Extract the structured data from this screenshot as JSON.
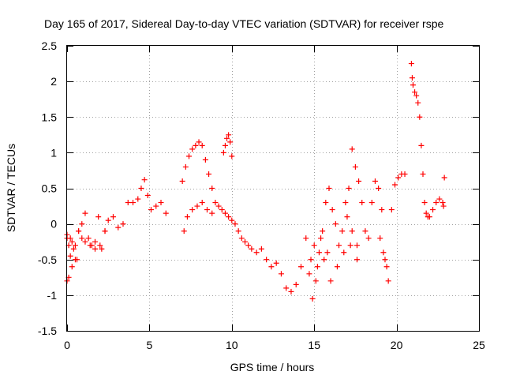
{
  "chart_data": {
    "type": "scatter",
    "title": "Day 165 of 2017, Sidereal Day-to-day VTEC variation (SDTVAR) for receiver rspe",
    "xlabel": "GPS time / hours",
    "ylabel": "SDTVAR / TECUs",
    "xlim": [
      0,
      25
    ],
    "ylim": [
      -1.5,
      2.5
    ],
    "xticks": [
      0,
      5,
      10,
      15,
      20,
      25
    ],
    "xtick_labels": [
      "0",
      "5",
      "10",
      "15",
      "20",
      "25"
    ],
    "yticks": [
      -1.5,
      -1,
      -0.5,
      0,
      0.5,
      1,
      1.5,
      2,
      2.5
    ],
    "ytick_labels": [
      "-1.5",
      "-1",
      "-0.5",
      "0",
      "0.5",
      "1",
      "1.5",
      "2",
      "2.5"
    ],
    "grid": true,
    "marker": "+",
    "marker_color": "#ff0000",
    "series": [
      {
        "name": "rspe",
        "x": [
          0.0,
          0.1,
          0.2,
          0.3,
          0.5,
          0.7,
          0.9,
          1.1,
          1.3,
          1.5,
          1.7,
          1.9,
          2.1,
          2.3,
          2.5,
          2.8,
          3.1,
          3.4,
          3.7,
          4.0,
          4.3,
          4.5,
          4.7,
          4.9,
          5.1,
          5.4,
          5.7,
          6.0,
          0.0,
          0.1,
          0.3,
          0.5,
          0.7,
          0.9,
          1.1,
          1.4,
          1.7,
          2.0,
          2.3,
          0.0,
          0.2,
          0.4,
          0.6,
          7.0,
          7.2,
          7.4,
          7.6,
          7.8,
          8.0,
          8.2,
          8.4,
          8.6,
          8.8,
          9.0,
          9.2,
          9.4,
          9.6,
          9.8,
          10.0,
          10.2,
          10.4,
          10.6,
          10.8,
          11.0,
          7.1,
          7.3,
          7.6,
          7.9,
          8.2,
          8.5,
          8.8,
          9.5,
          9.6,
          9.7,
          9.8,
          9.9,
          10.0,
          11.2,
          11.5,
          11.8,
          12.1,
          12.4,
          12.7,
          13.0,
          13.3,
          13.6,
          13.9,
          14.2,
          14.5,
          14.7,
          14.9,
          15.1,
          15.3,
          15.5,
          15.7,
          15.9,
          16.1,
          16.3,
          16.5,
          16.7,
          16.9,
          17.1,
          17.3,
          17.5,
          17.7,
          17.9,
          18.1,
          18.3,
          18.5,
          18.7,
          18.9,
          19.1,
          19.3,
          19.5,
          19.7,
          19.9,
          20.1,
          20.3,
          20.5,
          14.8,
          15.0,
          15.2,
          15.4,
          15.6,
          15.8,
          16.0,
          16.4,
          16.8,
          17.2,
          17.6,
          17.0,
          17.3,
          17.6,
          19.0,
          19.2,
          19.4,
          20.9,
          20.95,
          21.0,
          21.1,
          21.2,
          21.3,
          21.4,
          21.5,
          21.6,
          21.7,
          21.8,
          21.9,
          22.0,
          22.2,
          22.4,
          22.6,
          22.8,
          22.85,
          22.9
        ],
        "y": [
          -0.2,
          -0.3,
          -0.45,
          -0.25,
          -0.5,
          -0.1,
          0.0,
          0.15,
          -0.2,
          -0.3,
          -0.25,
          0.1,
          -0.35,
          -0.1,
          0.05,
          0.1,
          -0.05,
          0.0,
          0.3,
          0.3,
          0.35,
          0.5,
          0.62,
          0.4,
          0.2,
          0.25,
          0.3,
          0.15,
          -0.8,
          -0.75,
          -0.6,
          -0.3,
          -0.1,
          -0.2,
          -0.25,
          -0.3,
          -0.35,
          -0.3,
          -0.1,
          -0.15,
          -0.2,
          -0.35,
          -0.5,
          0.6,
          0.8,
          0.95,
          1.05,
          1.1,
          1.15,
          1.1,
          0.9,
          0.7,
          0.5,
          0.3,
          0.25,
          0.2,
          0.15,
          0.1,
          0.05,
          0.0,
          -0.1,
          -0.2,
          -0.25,
          -0.3,
          -0.1,
          0.1,
          0.2,
          0.25,
          0.3,
          0.2,
          0.15,
          1.0,
          1.1,
          1.2,
          1.25,
          1.15,
          0.95,
          -0.35,
          -0.4,
          -0.35,
          -0.5,
          -0.6,
          -0.55,
          -0.7,
          -0.9,
          -0.95,
          -0.85,
          -0.6,
          -0.2,
          -0.7,
          -1.05,
          -0.8,
          -0.4,
          -0.1,
          0.3,
          0.5,
          0.2,
          0.0,
          -0.3,
          -0.1,
          0.3,
          0.5,
          1.05,
          0.8,
          0.6,
          0.3,
          -0.1,
          -0.2,
          0.3,
          0.6,
          0.5,
          0.2,
          -0.5,
          -0.8,
          0.2,
          0.55,
          0.65,
          0.7,
          0.7,
          -0.5,
          -0.3,
          -0.6,
          -0.2,
          -0.5,
          -0.4,
          -0.8,
          -0.6,
          -0.4,
          -0.3,
          -0.5,
          0.1,
          -0.1,
          -0.3,
          -0.2,
          -0.4,
          -0.6,
          2.25,
          2.05,
          1.95,
          1.85,
          1.8,
          1.7,
          1.5,
          1.1,
          0.7,
          0.3,
          0.15,
          0.1,
          0.1,
          0.2,
          0.3,
          0.35,
          0.3,
          0.25,
          0.65
        ]
      }
    ]
  }
}
